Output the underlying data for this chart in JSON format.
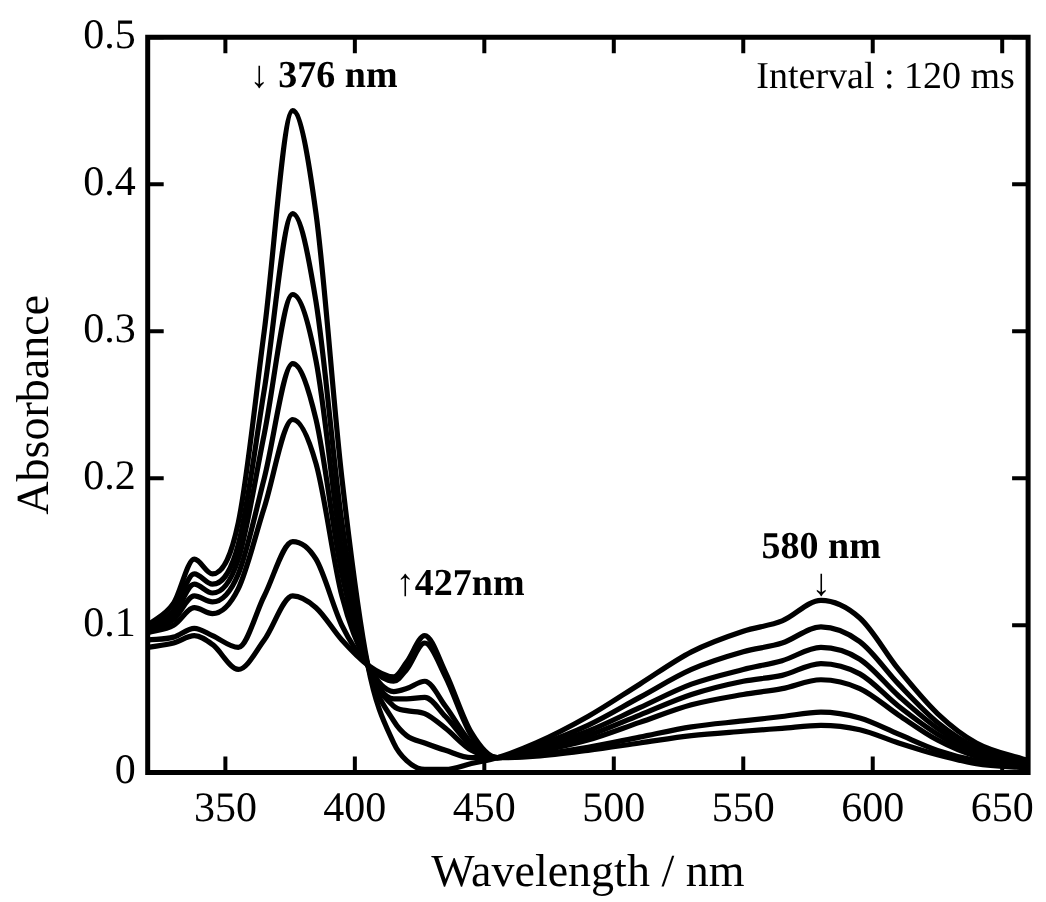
{
  "chart_data": {
    "type": "line",
    "xlabel": "Wavelength / nm",
    "ylabel": "Absorbance",
    "x": [
      320,
      330,
      338,
      345,
      355,
      365,
      376,
      385,
      395,
      405,
      415,
      420,
      427,
      435,
      445,
      455,
      470,
      490,
      510,
      530,
      550,
      565,
      580,
      595,
      610,
      625,
      640,
      660
    ],
    "series": [
      {
        "color": "#000000",
        "values": [
          0.1,
          0.115,
          0.145,
          0.135,
          0.17,
          0.3,
          0.45,
          0.38,
          0.2,
          0.073,
          0.02,
          0.008,
          0.002,
          0.002,
          0.006,
          0.01,
          0.02,
          0.038,
          0.06,
          0.082,
          0.096,
          0.103,
          0.117,
          0.105,
          0.07,
          0.04,
          0.02,
          0.008
        ]
      },
      {
        "color": "#000000",
        "values": [
          0.098,
          0.11,
          0.135,
          0.128,
          0.155,
          0.26,
          0.38,
          0.32,
          0.17,
          0.073,
          0.035,
          0.025,
          0.02,
          0.015,
          0.01,
          0.01,
          0.018,
          0.032,
          0.051,
          0.07,
          0.082,
          0.088,
          0.099,
          0.089,
          0.06,
          0.034,
          0.017,
          0.007
        ]
      },
      {
        "color": "#000000",
        "values": [
          0.097,
          0.107,
          0.128,
          0.122,
          0.145,
          0.23,
          0.325,
          0.28,
          0.15,
          0.073,
          0.045,
          0.042,
          0.04,
          0.03,
          0.015,
          0.01,
          0.016,
          0.028,
          0.044,
          0.06,
          0.07,
          0.076,
          0.085,
          0.077,
          0.052,
          0.03,
          0.015,
          0.006
        ]
      },
      {
        "color": "#000000",
        "values": [
          0.096,
          0.104,
          0.12,
          0.116,
          0.135,
          0.2,
          0.278,
          0.24,
          0.135,
          0.073,
          0.05,
          0.05,
          0.051,
          0.038,
          0.018,
          0.01,
          0.015,
          0.025,
          0.039,
          0.053,
          0.062,
          0.066,
          0.074,
          0.067,
          0.045,
          0.026,
          0.013,
          0.005
        ]
      },
      {
        "color": "#000000",
        "values": [
          0.095,
          0.1,
          0.112,
          0.108,
          0.125,
          0.18,
          0.24,
          0.21,
          0.12,
          0.073,
          0.055,
          0.057,
          0.062,
          0.045,
          0.02,
          0.01,
          0.014,
          0.022,
          0.034,
          0.046,
          0.053,
          0.057,
          0.063,
          0.057,
          0.039,
          0.022,
          0.011,
          0.005
        ]
      },
      {
        "color": "#000000",
        "values": [
          0.09,
          0.092,
          0.098,
          0.093,
          0.085,
          0.12,
          0.157,
          0.145,
          0.1,
          0.073,
          0.062,
          0.07,
          0.088,
          0.065,
          0.025,
          0.01,
          0.012,
          0.017,
          0.024,
          0.031,
          0.035,
          0.038,
          0.041,
          0.037,
          0.026,
          0.015,
          0.008,
          0.004
        ]
      },
      {
        "color": "#000000",
        "values": [
          0.085,
          0.088,
          0.093,
          0.087,
          0.07,
          0.09,
          0.12,
          0.112,
          0.09,
          0.073,
          0.065,
          0.075,
          0.093,
          0.068,
          0.027,
          0.01,
          0.011,
          0.015,
          0.02,
          0.025,
          0.028,
          0.03,
          0.032,
          0.029,
          0.02,
          0.012,
          0.006,
          0.003
        ]
      }
    ],
    "xlim": [
      320,
      660
    ],
    "xticks": [
      350,
      400,
      450,
      500,
      550,
      600,
      650
    ],
    "ylim": [
      0,
      0.5
    ],
    "yticks": [
      0,
      0.1,
      0.2,
      0.3,
      0.4,
      0.5
    ],
    "annotations": [
      "↓ 376 nm",
      "↑427nm",
      "580 nm",
      "↓",
      "Interval : 120 ms"
    ],
    "grid": false,
    "legend": false,
    "marker": "none",
    "line_style": "solid"
  }
}
